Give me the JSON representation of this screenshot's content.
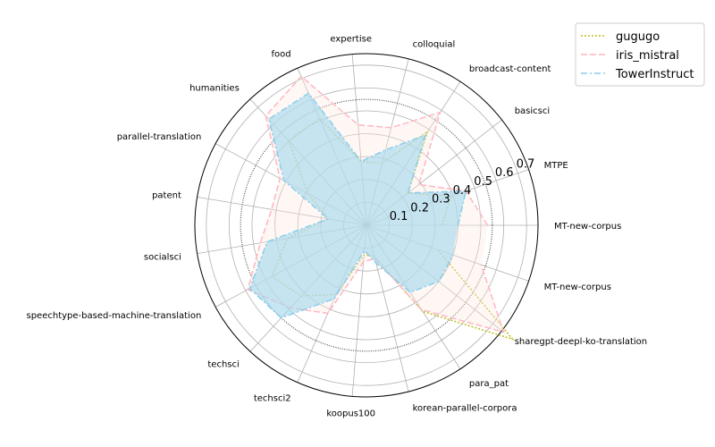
{
  "chart_data": {
    "type": "radar",
    "categories": [
      "MT-new-corpus",
      "MTPE",
      "basicsci",
      "broadcast-content",
      "colloquial",
      "expertise",
      "food",
      "humanities",
      "parallel-translation",
      "patent",
      "socialsci",
      "speechtype-based-machine-translation",
      "techsci",
      "techsci2",
      "koopus100",
      "korean-parallel-corpora",
      "para_pat",
      "sharegpt-deepl-ko-translation",
      "MT-new-corpus"
    ],
    "rticks": [
      "0.1",
      "0.2",
      "0.3",
      "0.4",
      "0.5",
      "0.6",
      "0.7"
    ],
    "rlim": [
      0,
      0.75
    ],
    "reference_circle": 0.55,
    "series": [
      {
        "name": "gugugo",
        "color": "#bcbd22",
        "dash": "dotted",
        "fill": "none",
        "values": [
          0.33,
          0.39,
          0.23,
          0.49,
          0.28,
          0.28,
          0.51,
          0.5,
          0.29,
          0.17,
          0.35,
          0.47,
          0.42,
          0.33,
          0.13,
          0.14,
          0.45,
          0.81,
          0.33
        ]
      },
      {
        "name": "iris_mistral",
        "color": "#ffb6c1",
        "dash": "dashed",
        "fill": "#fde8df",
        "values": [
          0.53,
          0.46,
          0.29,
          0.59,
          0.44,
          0.44,
          0.71,
          0.65,
          0.43,
          0.42,
          0.47,
          0.59,
          0.49,
          0.42,
          0.16,
          0.15,
          0.44,
          0.76,
          0.53
        ]
      },
      {
        "name": "TowerInstruct",
        "color": "#87ceeb",
        "dash": "dashdot",
        "fill": "#a8d8ee",
        "values": [
          0.4,
          0.46,
          0.23,
          0.47,
          0.34,
          0.28,
          0.63,
          0.63,
          0.41,
          0.17,
          0.44,
          0.58,
          0.55,
          0.35,
          0.11,
          0.17,
          0.35,
          0.4,
          0.4
        ]
      }
    ],
    "legend_position": "top-right",
    "grid": true
  }
}
